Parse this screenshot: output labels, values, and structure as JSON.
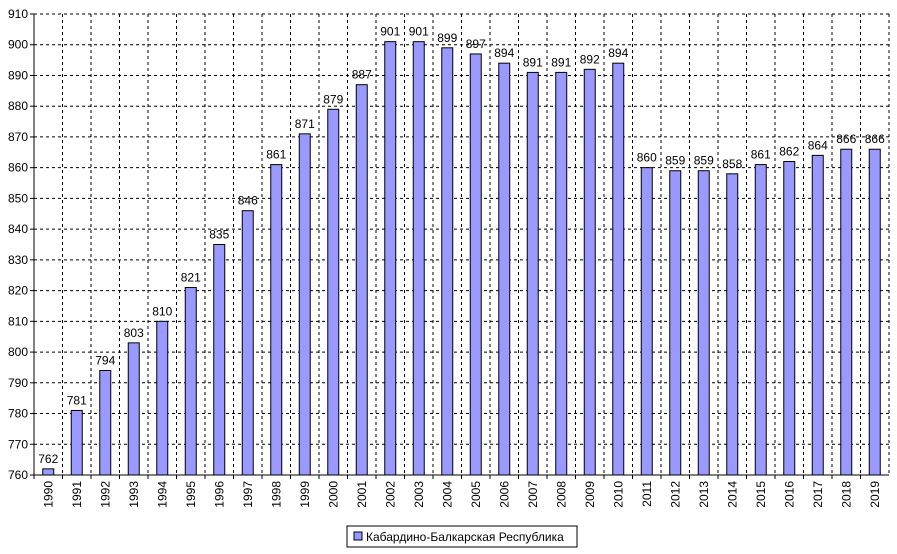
{
  "chart_data": {
    "type": "bar",
    "categories": [
      "1990",
      "1991",
      "1992",
      "1993",
      "1994",
      "1995",
      "1996",
      "1997",
      "1998",
      "1999",
      "2000",
      "2001",
      "2002",
      "2003",
      "2004",
      "2005",
      "2006",
      "2007",
      "2008",
      "2009",
      "2010",
      "2011",
      "2012",
      "2013",
      "2014",
      "2015",
      "2016",
      "2017",
      "2018",
      "2019"
    ],
    "series": [
      {
        "name": "Кабардино-Балкарская Республика",
        "values": [
          762,
          781,
          794,
          803,
          810,
          821,
          835,
          846,
          861,
          871,
          879,
          887,
          901,
          901,
          899,
          897,
          894,
          891,
          891,
          892,
          894,
          860,
          859,
          859,
          858,
          861,
          862,
          864,
          866,
          866
        ]
      }
    ],
    "title": "",
    "xlabel": "",
    "ylabel": "",
    "ylim": [
      760,
      910
    ],
    "yticks": [
      760,
      770,
      780,
      790,
      800,
      810,
      820,
      830,
      840,
      850,
      860,
      870,
      880,
      890,
      900,
      910
    ],
    "grid": true,
    "legend_position": "bottom-center",
    "bar_color": "#9999ff",
    "bar_stroke": "#000000",
    "grid_color": "#000000"
  }
}
